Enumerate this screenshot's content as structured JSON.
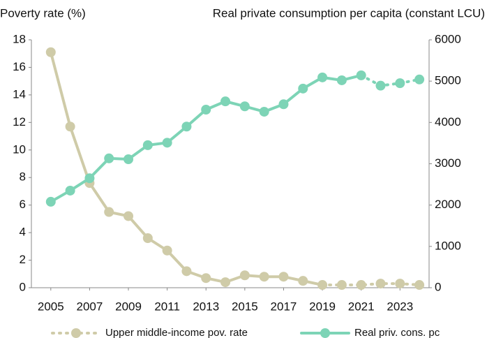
{
  "chart_data": {
    "type": "line",
    "y_label": "Poverty rate (%)",
    "y2_label": "Real private consumption per capita (constant LCU)",
    "x": [
      2005,
      2006,
      2007,
      2008,
      2009,
      2010,
      2011,
      2012,
      2013,
      2014,
      2015,
      2016,
      2017,
      2018,
      2019,
      2020,
      2021,
      2022,
      2023,
      2024
    ],
    "xlim": [
      2004,
      2024.5
    ],
    "xticks": [
      2005,
      2007,
      2009,
      2011,
      2013,
      2015,
      2017,
      2019,
      2021,
      2023
    ],
    "ylim": [
      0,
      18
    ],
    "yticks": [
      0,
      2,
      4,
      6,
      8,
      10,
      12,
      14,
      16,
      18
    ],
    "y2lim": [
      0,
      6000
    ],
    "y2ticks": [
      0,
      1000,
      2000,
      3000,
      4000,
      5000,
      6000
    ],
    "series": [
      {
        "name": "Upper middle-income pov. rate",
        "color": "#cfcba8",
        "dashed_from": 2019,
        "values": [
          17.1,
          11.7,
          7.6,
          5.5,
          5.2,
          3.6,
          2.7,
          1.2,
          0.7,
          0.4,
          0.9,
          0.8,
          0.8,
          0.5,
          0.2,
          0.2,
          0.2,
          0.3,
          0.3,
          0.2
        ]
      },
      {
        "name": "Real priv. cons. pc",
        "color": "#7dd4b6",
        "axis": "y2",
        "dashed_from": 2021,
        "values": [
          2080,
          2350,
          2650,
          3130,
          3110,
          3450,
          3510,
          3900,
          4310,
          4510,
          4390,
          4260,
          4440,
          4820,
          5090,
          5020,
          5140,
          4890,
          4950,
          5040
        ]
      }
    ]
  }
}
